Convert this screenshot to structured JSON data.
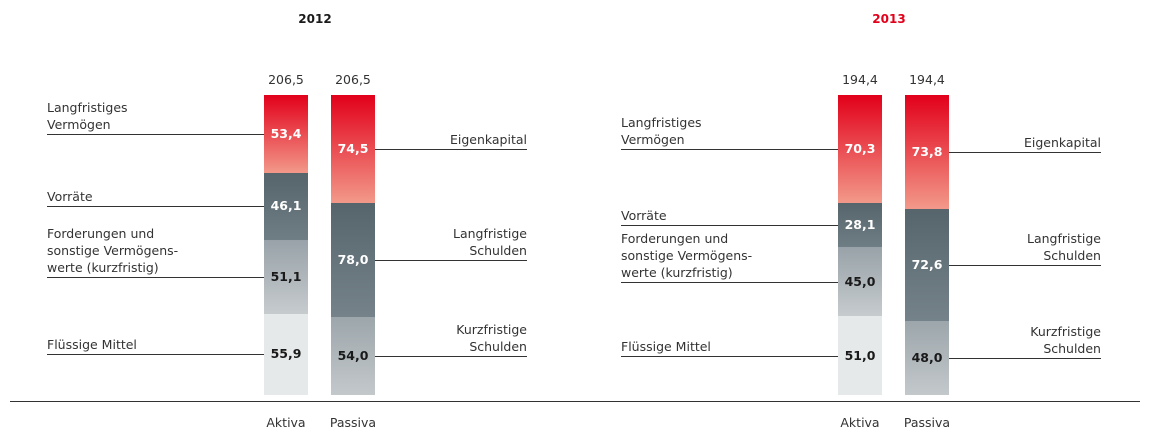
{
  "chart_data": [
    {
      "type": "stacked_bar",
      "title": "2012",
      "title_color": "#1a1a1a",
      "categories": [
        "Aktiva",
        "Passiva"
      ],
      "totals": [
        206.5,
        206.5
      ],
      "total_labels": [
        "206,5",
        "206,5"
      ],
      "series": [
        {
          "name": "Langfristiges\nVermögen",
          "color": [
            "#e2001a",
            "#f2998a"
          ],
          "values": [
            53.4,
            null
          ],
          "value_labels": [
            "53,4",
            null
          ]
        },
        {
          "name": "Vorräte",
          "color": [
            "#56656c",
            "#6f7d84"
          ],
          "values": [
            46.1,
            null
          ],
          "value_labels": [
            "46,1",
            null
          ]
        },
        {
          "name": "Forderungen und\nsonstige Vermögens-\nwerte (kurzfristig)",
          "color": [
            "#98a2a8",
            "#c6cbce"
          ],
          "values": [
            51.1,
            null
          ],
          "value_labels": [
            "51,1",
            null
          ]
        },
        {
          "name": "Flüssige Mittel",
          "color": [
            "#e6e9ea",
            "#e6e9ea"
          ],
          "values": [
            55.9,
            null
          ],
          "value_labels": [
            "55,9",
            null
          ]
        },
        {
          "name": "Eigenkapital",
          "color": [
            "#e2001a",
            "#f2998a"
          ],
          "values": [
            null,
            74.5
          ],
          "value_labels": [
            null,
            "74,5"
          ]
        },
        {
          "name": "Langfristige\nSchulden",
          "color": [
            "#56656c",
            "#75828a"
          ],
          "values": [
            null,
            78.0
          ],
          "value_labels": [
            null,
            "78,0"
          ]
        },
        {
          "name": "Kurzfristige\nSchulden",
          "color": [
            "#9ca6ab",
            "#c3c8cb"
          ],
          "values": [
            null,
            54.0
          ],
          "value_labels": [
            null,
            "54,0"
          ]
        }
      ]
    },
    {
      "type": "stacked_bar",
      "title": "2013",
      "title_color": "#e2001a",
      "categories": [
        "Aktiva",
        "Passiva"
      ],
      "totals": [
        194.4,
        194.4
      ],
      "total_labels": [
        "194,4",
        "194,4"
      ],
      "series": [
        {
          "name": "Langfristiges\nVermögen",
          "color": [
            "#e2001a",
            "#f2998a"
          ],
          "values": [
            70.3,
            null
          ],
          "value_labels": [
            "70,3",
            null
          ]
        },
        {
          "name": "Vorräte",
          "color": [
            "#56656c",
            "#6f7d84"
          ],
          "values": [
            28.1,
            null
          ],
          "value_labels": [
            "28,1",
            null
          ]
        },
        {
          "name": "Forderungen und\nsonstige Vermögens-\nwerte (kurzfristig)",
          "color": [
            "#98a2a8",
            "#c6cbce"
          ],
          "values": [
            45.0,
            null
          ],
          "value_labels": [
            "45,0",
            null
          ]
        },
        {
          "name": "Flüssige Mittel",
          "color": [
            "#e6e9ea",
            "#e6e9ea"
          ],
          "values": [
            51.0,
            null
          ],
          "value_labels": [
            "51,0",
            null
          ]
        },
        {
          "name": "Eigenkapital",
          "color": [
            "#e2001a",
            "#f2998a"
          ],
          "values": [
            null,
            73.8
          ],
          "value_labels": [
            null,
            "73,8"
          ]
        },
        {
          "name": "Langfristige\nSchulden",
          "color": [
            "#56656c",
            "#75828a"
          ],
          "values": [
            null,
            72.6
          ],
          "value_labels": [
            null,
            "72,6"
          ]
        },
        {
          "name": "Kurzfristige\nSchulden",
          "color": [
            "#9ca6ab",
            "#c3c8cb"
          ],
          "values": [
            null,
            48.0
          ],
          "value_labels": [
            null,
            "48,0"
          ]
        }
      ]
    }
  ]
}
